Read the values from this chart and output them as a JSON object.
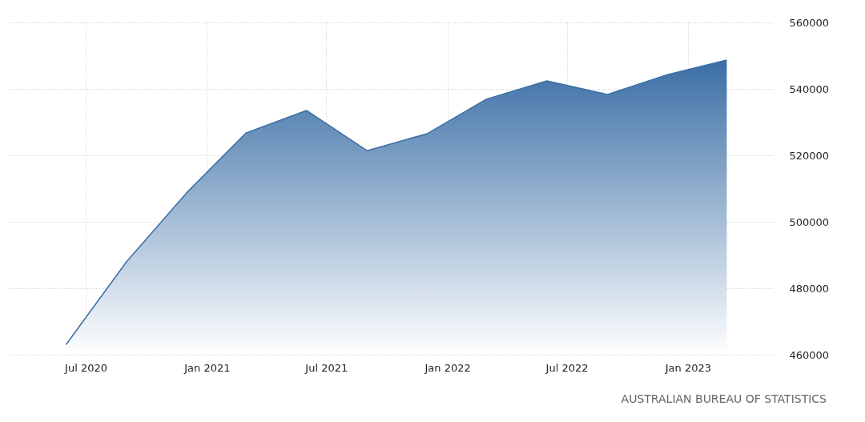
{
  "chart_data": {
    "type": "area",
    "x": [
      "2020-06",
      "2020-09",
      "2020-12",
      "2021-03",
      "2021-06",
      "2021-09",
      "2021-12",
      "2022-03",
      "2022-06",
      "2022-09",
      "2022-12",
      "2023-03"
    ],
    "series": [
      {
        "color": "#3a6ea5",
        "values": [
          463000,
          488000,
          508700,
          526700,
          533500,
          521400,
          526500,
          536900,
          542400,
          538300,
          544300,
          548700
        ]
      }
    ],
    "xlim": [
      "2020-03-05",
      "2023-05-10"
    ],
    "xticks": [
      {
        "value": "2020-07",
        "label": "Jul 2020"
      },
      {
        "value": "2021-01",
        "label": "Jan 2021"
      },
      {
        "value": "2021-07",
        "label": "Jul 2021"
      },
      {
        "value": "2022-01",
        "label": "Jan 2022"
      },
      {
        "value": "2022-07",
        "label": "Jul 2022"
      },
      {
        "value": "2023-01",
        "label": "Jan 2023"
      }
    ],
    "ylim": [
      460000,
      560000
    ],
    "yticks": [
      460000,
      480000,
      500000,
      520000,
      540000,
      560000
    ],
    "grid": true,
    "annotations": [
      "AUSTRALIAN BUREAU OF STATISTICS"
    ]
  }
}
